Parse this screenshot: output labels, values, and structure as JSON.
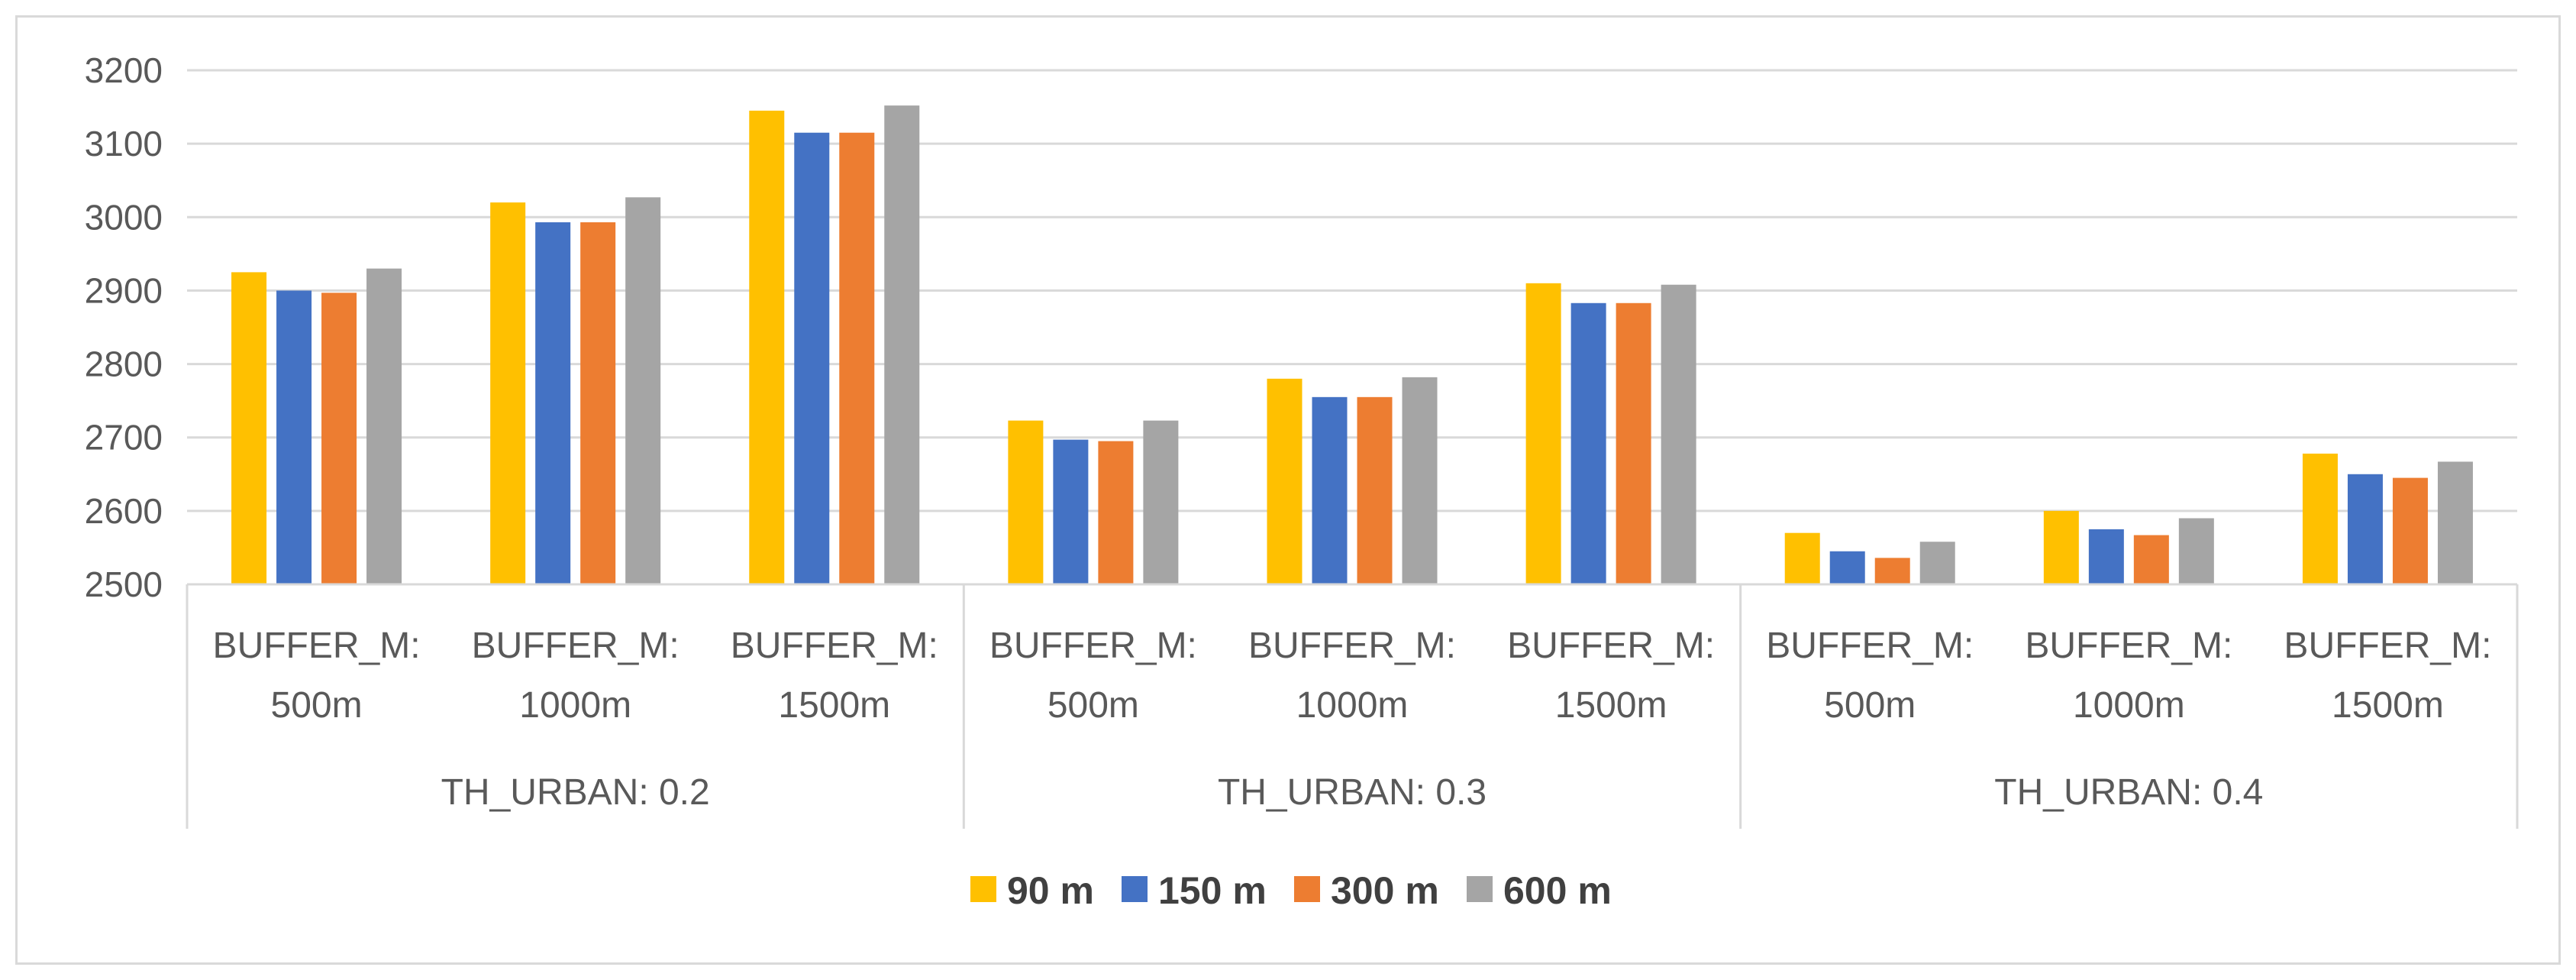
{
  "chart_data": {
    "type": "bar",
    "groups": [
      {
        "label": "TH_URBAN: 0.2",
        "categories": [
          {
            "line1": "BUFFER_M:",
            "line2": "500m"
          },
          {
            "line1": "BUFFER_M:",
            "line2": "1000m"
          },
          {
            "line1": "BUFFER_M:",
            "line2": "1500m"
          }
        ]
      },
      {
        "label": "TH_URBAN: 0.3",
        "categories": [
          {
            "line1": "BUFFER_M:",
            "line2": "500m"
          },
          {
            "line1": "BUFFER_M:",
            "line2": "1000m"
          },
          {
            "line1": "BUFFER_M:",
            "line2": "1500m"
          }
        ]
      },
      {
        "label": "TH_URBAN: 0.4",
        "categories": [
          {
            "line1": "BUFFER_M:",
            "line2": "500m"
          },
          {
            "line1": "BUFFER_M:",
            "line2": "1000m"
          },
          {
            "line1": "BUFFER_M:",
            "line2": "1500m"
          }
        ]
      }
    ],
    "series": [
      {
        "name": "90 m",
        "color": "#ffc000",
        "values": [
          2925,
          3020,
          3145,
          2723,
          2780,
          2910,
          2570,
          2600,
          2678
        ]
      },
      {
        "name": "150 m",
        "color": "#4472c4",
        "values": [
          2900,
          2993,
          3115,
          2697,
          2755,
          2883,
          2545,
          2575,
          2650
        ]
      },
      {
        "name": "300 m",
        "color": "#ed7d31",
        "values": [
          2897,
          2993,
          3115,
          2695,
          2755,
          2883,
          2536,
          2567,
          2645
        ]
      },
      {
        "name": "600 m",
        "color": "#a5a5a5",
        "values": [
          2930,
          3027,
          3152,
          2723,
          2782,
          2908,
          2558,
          2590,
          2667
        ]
      }
    ],
    "ylim": [
      2500,
      3200
    ],
    "yticks": [
      2500,
      2600,
      2700,
      2800,
      2900,
      3000,
      3100,
      3200
    ],
    "grid": true,
    "legend_position": "bottom",
    "title": "",
    "xlabel": "",
    "ylabel": "",
    "colors": {
      "gridline": "#d9d9d9",
      "text": "#595959",
      "border": "#d9d9d9"
    }
  }
}
